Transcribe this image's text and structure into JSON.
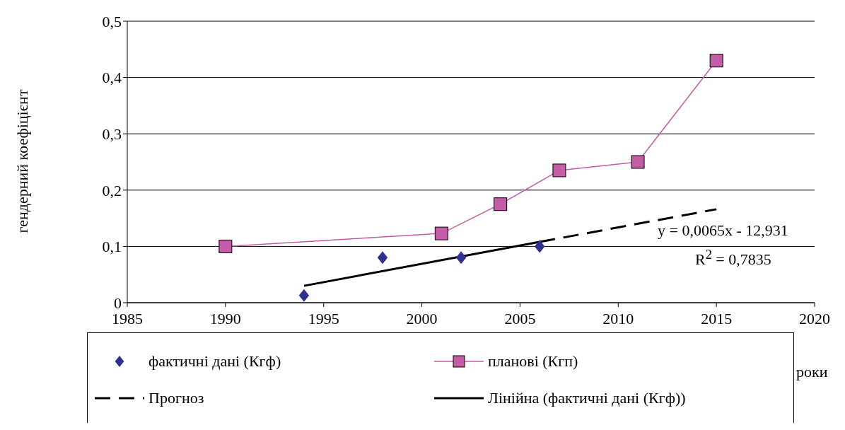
{
  "chart_data": {
    "type": "line",
    "xlabel": "роки",
    "ylabel": "гендерний коефіцієнт",
    "xlim": [
      1985,
      2020
    ],
    "xticks": [
      1985,
      1990,
      1995,
      2000,
      2005,
      2010,
      2015,
      2020
    ],
    "ylim": [
      0,
      0.5
    ],
    "yticks": [
      {
        "value": 0,
        "label": "0"
      },
      {
        "value": 0.1,
        "label": "0,1"
      },
      {
        "value": 0.2,
        "label": "0,2"
      },
      {
        "value": 0.3,
        "label": "0,3"
      },
      {
        "value": 0.4,
        "label": "0,4"
      },
      {
        "value": 0.5,
        "label": "0,5"
      }
    ],
    "grid": "y",
    "legend": "bottom",
    "annotations": [
      "y = 0,0065x - 12,931",
      "R$^{2}$ = 0,7835"
    ],
    "series": [
      {
        "name": "фактичні дані (Кгф)",
        "type": "scatter",
        "marker": "diamond",
        "color": "#2e3192",
        "x": [
          1994,
          1998,
          2002,
          2006
        ],
        "values": [
          0.013,
          0.08,
          0.08,
          0.1
        ]
      },
      {
        "name": "планові (Кгп)",
        "marker": "square",
        "line_style": "solid",
        "color": "#c45ca8",
        "x": [
          1990,
          2001,
          2004,
          2007,
          2011,
          2015
        ],
        "values": [
          0.1,
          0.123,
          0.175,
          0.235,
          0.25,
          0.43
        ]
      },
      {
        "name": "Прогноз",
        "marker": "none",
        "line_style": "dashed",
        "color": "#000000",
        "x": [
          2006,
          2015
        ],
        "values": [
          0.108,
          0.166
        ]
      },
      {
        "name": "Лінійна (фактичні дані (Кгф))",
        "marker": "none",
        "line_style": "solid",
        "color": "#000000",
        "x": [
          1994,
          2006
        ],
        "values": [
          0.03,
          0.108
        ]
      }
    ]
  }
}
